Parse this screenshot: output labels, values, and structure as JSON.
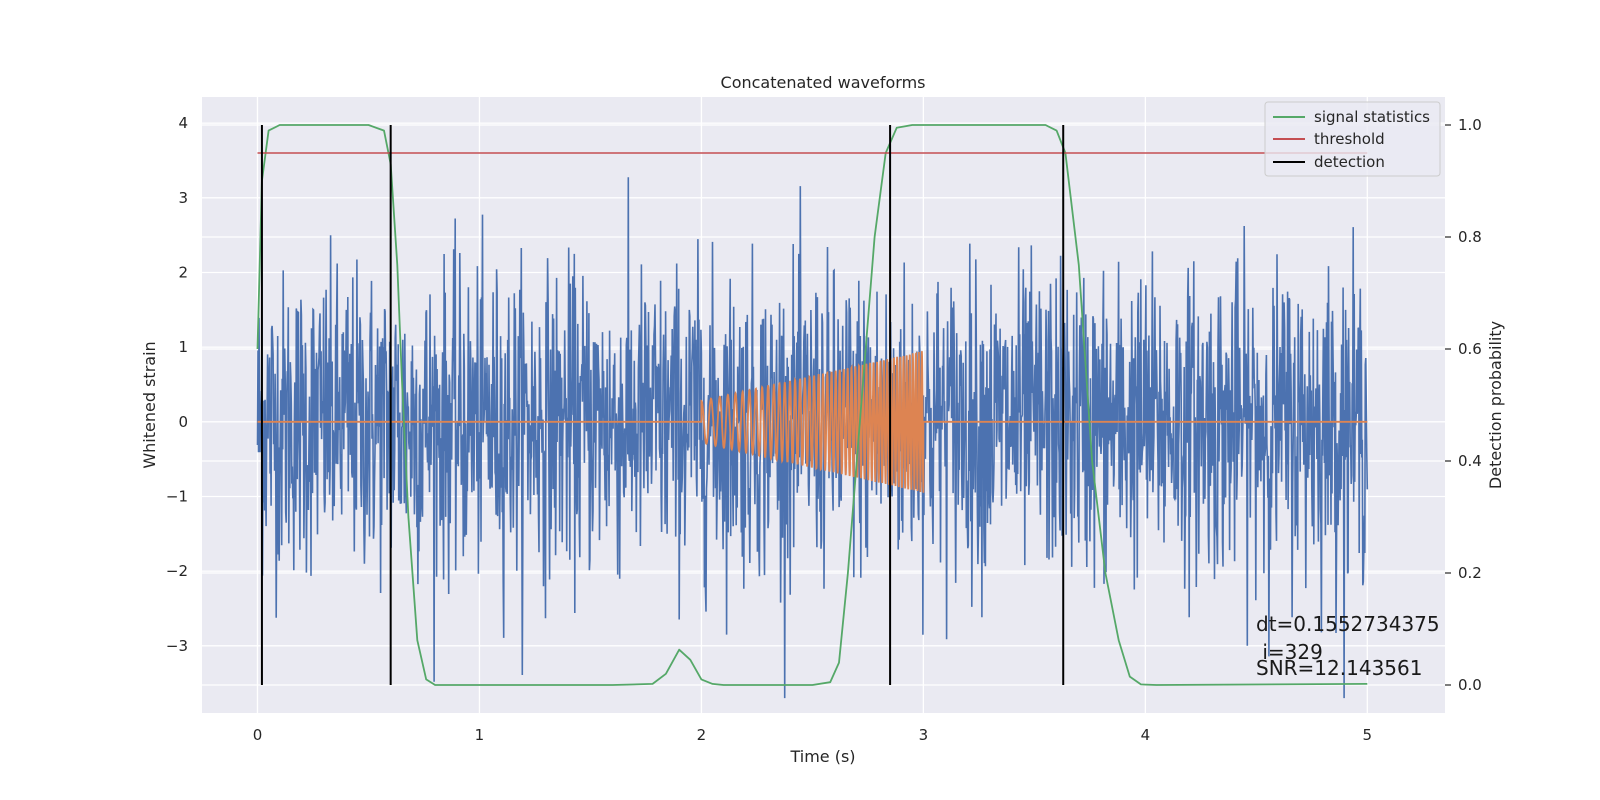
{
  "chart_data": {
    "type": "line",
    "title": "Concatenated waveforms",
    "xlabel": "Time (s)",
    "ylabel": "Whitened strain",
    "y2label": "Detection probability",
    "xlim": [
      -0.25,
      5.35
    ],
    "ylim": [
      -3.9,
      4.35
    ],
    "y2lim": [
      -0.05,
      1.05
    ],
    "x_ticks": [
      0,
      1,
      2,
      3,
      4,
      5
    ],
    "y_ticks": [
      -3,
      -2,
      -1,
      0,
      1,
      2,
      3,
      4
    ],
    "y2_ticks": [
      0.0,
      0.2,
      0.4,
      0.6,
      0.8,
      1.0
    ],
    "x_tick_labels": [
      "0",
      "1",
      "2",
      "3",
      "4",
      "5"
    ],
    "y_tick_labels": [
      "−3",
      "−2",
      "−1",
      "0",
      "1",
      "2",
      "3",
      "4"
    ],
    "y2_tick_labels": [
      "0.0",
      "0.2",
      "0.4",
      "0.6",
      "0.8",
      "1.0"
    ],
    "grid": true,
    "legend_position": "top-right",
    "series": [
      {
        "name": "whitened strain",
        "axis": "left",
        "color": "#4c72b0",
        "description": "noisy whitened strain, approx. Gaussian, amplitude envelope ±4",
        "x_range": [
          0,
          5
        ],
        "std_approx": 1.0
      },
      {
        "name": "injected waveform",
        "axis": "left",
        "color": "#dd8452",
        "description": "chirp signal between 2.0 s and 3.0 s, zero elsewhere",
        "segment": [
          2.0,
          3.0
        ],
        "amplitude_start": 0.28,
        "amplitude_end": 0.95,
        "freq_start_hz": 22,
        "freq_end_hz": 75
      },
      {
        "name": "signal statistics",
        "axis": "right",
        "color": "#55a868",
        "points": [
          [
            0.0,
            0.6
          ],
          [
            0.02,
            0.9
          ],
          [
            0.05,
            0.99
          ],
          [
            0.1,
            1.0
          ],
          [
            0.5,
            1.0
          ],
          [
            0.57,
            0.99
          ],
          [
            0.6,
            0.93
          ],
          [
            0.63,
            0.75
          ],
          [
            0.65,
            0.55
          ],
          [
            0.68,
            0.3
          ],
          [
            0.72,
            0.08
          ],
          [
            0.76,
            0.01
          ],
          [
            0.8,
            0.0
          ],
          [
            1.6,
            0.0
          ],
          [
            1.78,
            0.002
          ],
          [
            1.84,
            0.02
          ],
          [
            1.9,
            0.063
          ],
          [
            1.95,
            0.045
          ],
          [
            2.0,
            0.01
          ],
          [
            2.05,
            0.002
          ],
          [
            2.1,
            0.0
          ],
          [
            2.5,
            0.0
          ],
          [
            2.58,
            0.005
          ],
          [
            2.62,
            0.04
          ],
          [
            2.66,
            0.2
          ],
          [
            2.72,
            0.5
          ],
          [
            2.78,
            0.8
          ],
          [
            2.83,
            0.95
          ],
          [
            2.88,
            0.995
          ],
          [
            2.95,
            1.0
          ],
          [
            3.55,
            1.0
          ],
          [
            3.6,
            0.99
          ],
          [
            3.64,
            0.95
          ],
          [
            3.7,
            0.75
          ],
          [
            3.76,
            0.4
          ],
          [
            3.82,
            0.2
          ],
          [
            3.88,
            0.08
          ],
          [
            3.93,
            0.015
          ],
          [
            3.98,
            0.001
          ],
          [
            4.05,
            0.0
          ],
          [
            5.0,
            0.002
          ]
        ]
      },
      {
        "name": "threshold",
        "axis": "right",
        "color": "#c44e52",
        "value": 0.95,
        "x_range": [
          0,
          5
        ]
      },
      {
        "name": "detection",
        "axis": "right",
        "color": "#000000",
        "x_positions": [
          0.02,
          0.6,
          2.85,
          3.63
        ],
        "y_range": [
          0.0,
          1.0
        ]
      }
    ],
    "legend": [
      "signal statistics",
      "threshold",
      "detection"
    ],
    "annotations": [
      "dt=0.1552734375",
      " i=329",
      "SNR=12.143561"
    ]
  }
}
